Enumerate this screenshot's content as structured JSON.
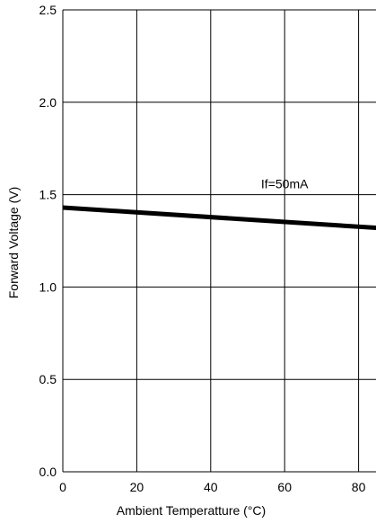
{
  "chart_data": {
    "type": "line",
    "title": "",
    "xlabel": "Ambient Temperatture (°C)",
    "ylabel": "Forward Voltage (V)",
    "xlim": [
      0,
      85
    ],
    "ylim": [
      0,
      2.5
    ],
    "xticks": [
      0,
      20,
      40,
      60,
      80
    ],
    "xtick_labels": [
      "0",
      "20",
      "40",
      "60",
      "80"
    ],
    "yticks": [
      0,
      0.5,
      1.0,
      1.5,
      2.0,
      2.5
    ],
    "ytick_labels": [
      "0.0",
      "0.5",
      "1.0",
      "1.5",
      "2.0",
      "2.5"
    ],
    "grid": true,
    "series": [
      {
        "name": "If=50mA",
        "x": [
          0,
          85
        ],
        "y": [
          1.43,
          1.32
        ]
      }
    ],
    "annotations": [
      {
        "text": "If=50mA",
        "x": 60,
        "y": 1.56
      }
    ]
  }
}
